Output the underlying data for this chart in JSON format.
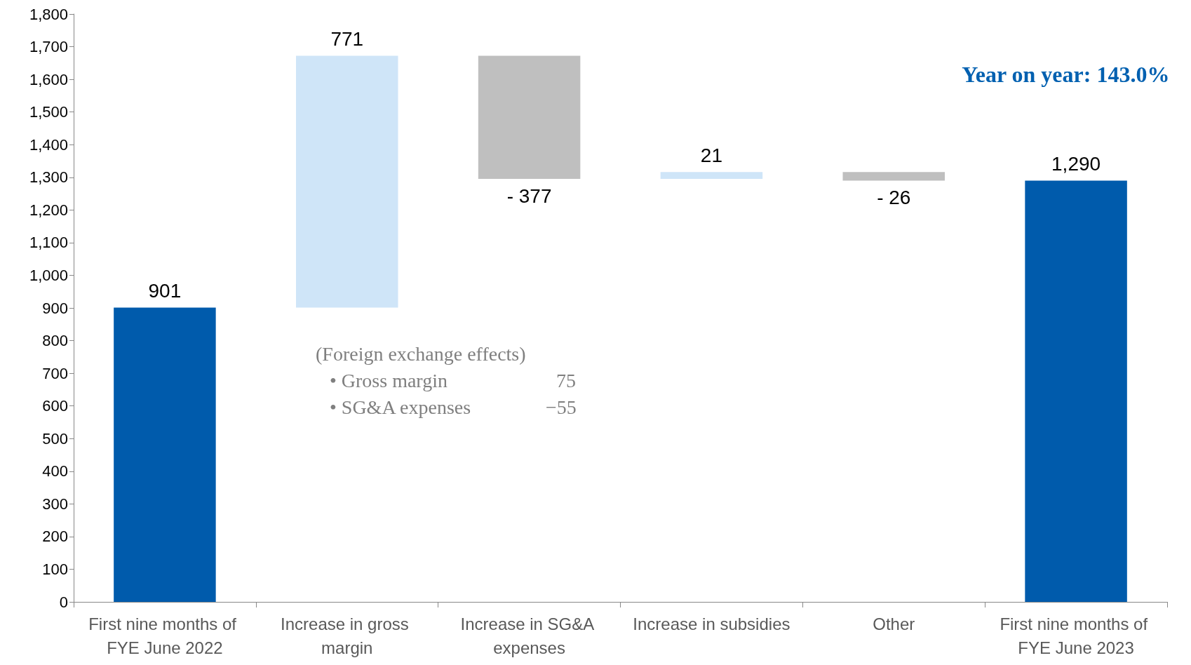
{
  "chart_data": {
    "type": "bar",
    "categories": [
      "First nine months of FYE June 2022",
      "Increase in gross margin",
      "Increase in SG&A expenses",
      "Increase in subsidies",
      "Other",
      "First nine months of FYE June 2023"
    ],
    "values": [
      901,
      771,
      -377,
      21,
      -26,
      1290
    ],
    "base": [
      0,
      901,
      1672,
      1295,
      1316,
      0
    ],
    "colors": [
      "#005bac",
      "#cfe5f8",
      "#bfbfbf",
      "#cfe5f8",
      "#bfbfbf",
      "#005bac"
    ],
    "value_labels": [
      "901",
      "771",
      "- 377",
      "21",
      "- 26",
      "1,290"
    ],
    "ylim": [
      0,
      1800
    ],
    "yticks": [
      0,
      100,
      200,
      300,
      400,
      500,
      600,
      700,
      800,
      900,
      {
        "value": 1000,
        "label": "1,000"
      },
      {
        "value": 1100,
        "label": "1,100"
      },
      {
        "value": 1200,
        "label": "1,200"
      },
      {
        "value": 1300,
        "label": "1,300"
      },
      {
        "value": 1400,
        "label": "1,400"
      },
      {
        "value": 1500,
        "label": "1,500"
      },
      {
        "value": 1600,
        "label": "1,600"
      },
      {
        "value": 1700,
        "label": "1,700"
      },
      {
        "value": 1800,
        "label": "1,800"
      }
    ],
    "annotations": [
      "Year on year: 143.0%",
      "(Foreign exchange effects)",
      "• Gross margin",
      "75",
      "• SG&A expenses",
      "−55"
    ]
  }
}
